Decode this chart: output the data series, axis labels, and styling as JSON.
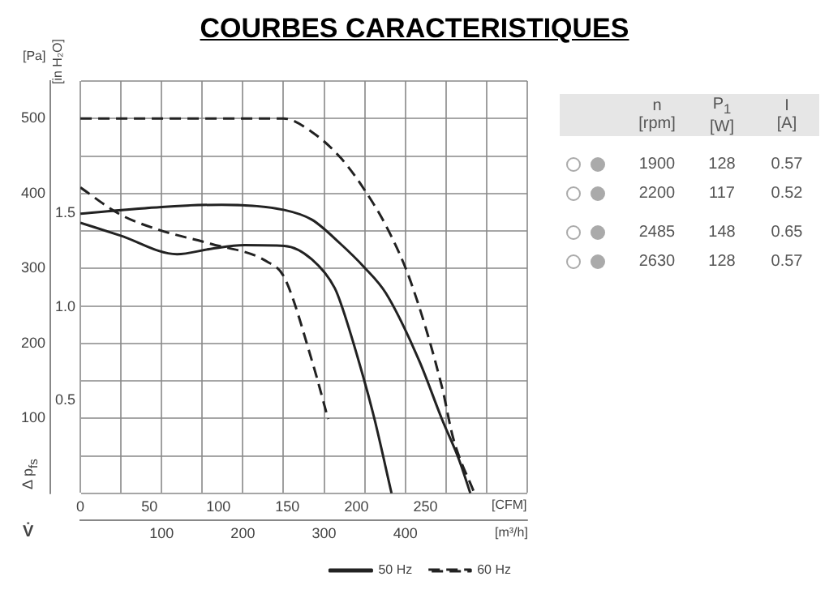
{
  "chart_data": [
    {
      "type": "line",
      "title": "COURBES CARACTERISTIQUES",
      "ylabel": "[Pa]",
      "y2label": "[in H₂O]",
      "xlabel": "[m³/h]",
      "x2label": "[CFM]",
      "annotations": [
        "Δ p$_{fs}$",
        "V̇"
      ],
      "xlim": [
        0,
        550
      ],
      "xticks": [
        {
          "value": 0,
          "label": null
        },
        {
          "value": 50,
          "label": null
        },
        100,
        {
          "value": 150,
          "label": null
        },
        200,
        {
          "value": 250,
          "label": null
        },
        300,
        {
          "value": 350,
          "label": null
        },
        400,
        {
          "value": 450,
          "label": null
        },
        {
          "value": 500,
          "label": null
        },
        {
          "value": 550,
          "label": null
        }
      ],
      "x2lim": [
        0,
        323.7
      ],
      "x2ticks": [
        0,
        50,
        100,
        150,
        200,
        250
      ],
      "ylim": [
        0,
        550
      ],
      "yticks": [
        {
          "value": 0,
          "label": null
        },
        {
          "value": 50,
          "label": null
        },
        100,
        {
          "value": 150,
          "label": null
        },
        200,
        {
          "value": 250,
          "label": null
        },
        300,
        {
          "value": 350,
          "label": null
        },
        400,
        {
          "value": 450,
          "label": null
        },
        500,
        {
          "value": 550,
          "label": null
        }
      ],
      "y2lim": [
        0,
        2.21
      ],
      "y2ticks": [
        {
          "value": 0.5,
          "label": "0.5"
        },
        {
          "value": 1,
          "label": "1.0"
        },
        {
          "value": 1.5,
          "label": "1.5"
        }
      ],
      "grid": true,
      "legend": "bottom right",
      "marker": "none",
      "series": [
        {
          "name": "50 Hz",
          "color": "#222222",
          "line_style": "solid",
          "x": [
            0,
            100,
            174,
            251,
            285,
            320,
            349,
            376,
            417,
            445,
            466,
            480
          ],
          "values": [
            373,
            382,
            385,
            378,
            365,
            333,
            302,
            267,
            177,
            99,
            45,
            0
          ]
        },
        {
          "color": "#222222",
          "line_style": "solid",
          "x": [
            0,
            49,
            119,
            160,
            202,
            251,
            285,
            313,
            322,
            348,
            362,
            383
          ],
          "values": [
            361,
            344,
            319,
            326,
            331,
            330,
            312,
            274,
            249,
            156,
            99,
            0
          ]
        },
        {
          "name": "60 Hz",
          "color": "#222222",
          "line_style": "dashed",
          "x": [
            0,
            250,
            285,
            320,
            349,
            379,
            407,
            445,
            459,
            485
          ],
          "values": [
            500,
            500,
            482,
            448,
            406,
            351,
            281,
            142,
            73,
            0
          ]
        },
        {
          "color": "#222222",
          "line_style": "dashed",
          "x": [
            0,
            49,
            98,
            160,
            230,
            251,
            285,
            305
          ],
          "values": [
            408,
            372,
            351,
            333,
            309,
            288,
            177,
            99
          ]
        }
      ]
    },
    {
      "type": "other",
      "annotations": [
        "n\n[rpm]",
        "P$_{1}$\n[W]",
        "I\n[A]",
        "1900",
        "128",
        "0.57",
        "2200",
        "117",
        "0.52",
        "2485",
        "148",
        "0.65",
        "2630",
        "128",
        "0.57"
      ]
    }
  ]
}
